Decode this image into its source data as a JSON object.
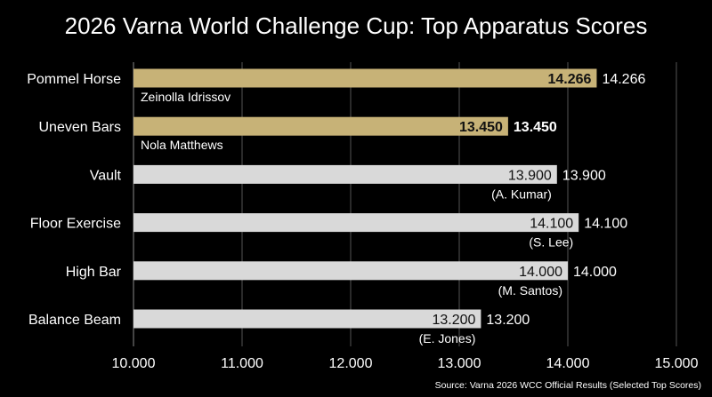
{
  "chart_data": {
    "type": "bar",
    "orientation": "horizontal",
    "title": "2026 Varna World Challenge Cup: Top Apparatus Scores",
    "xlim": [
      10.0,
      15.0
    ],
    "x_ticks": [
      10.0,
      11.0,
      12.0,
      13.0,
      14.0,
      15.0
    ],
    "x_tick_labels": [
      "10.000",
      "11.000",
      "12.000",
      "13.000",
      "14.000",
      "15.000"
    ],
    "grid": "vertical",
    "categories": [
      "Pommel Horse",
      "Uneven Bars",
      "Vault",
      "Floor Exercise",
      "High Bar",
      "Balance Beam"
    ],
    "values": [
      14.266,
      13.45,
      13.9,
      14.1,
      14.0,
      13.2
    ],
    "value_labels": [
      "14.266",
      "13.450",
      "13.900",
      "14.100",
      "14.000",
      "13.200"
    ],
    "athletes": [
      "Zeinolla Idrissov",
      "Nola Matthews",
      "(A. Kumar)",
      "(S. Lee)",
      "(M. Santos)",
      "(E. Jones)"
    ],
    "highlighted": [
      true,
      true,
      false,
      false,
      false,
      false
    ],
    "colors": {
      "highlight": "#c7b277",
      "default": "#d9d9d9",
      "background": "#000000",
      "grid": "#555555"
    },
    "source": "Source: Varna 2026 WCC Official Results (Selected Top Scores)"
  }
}
